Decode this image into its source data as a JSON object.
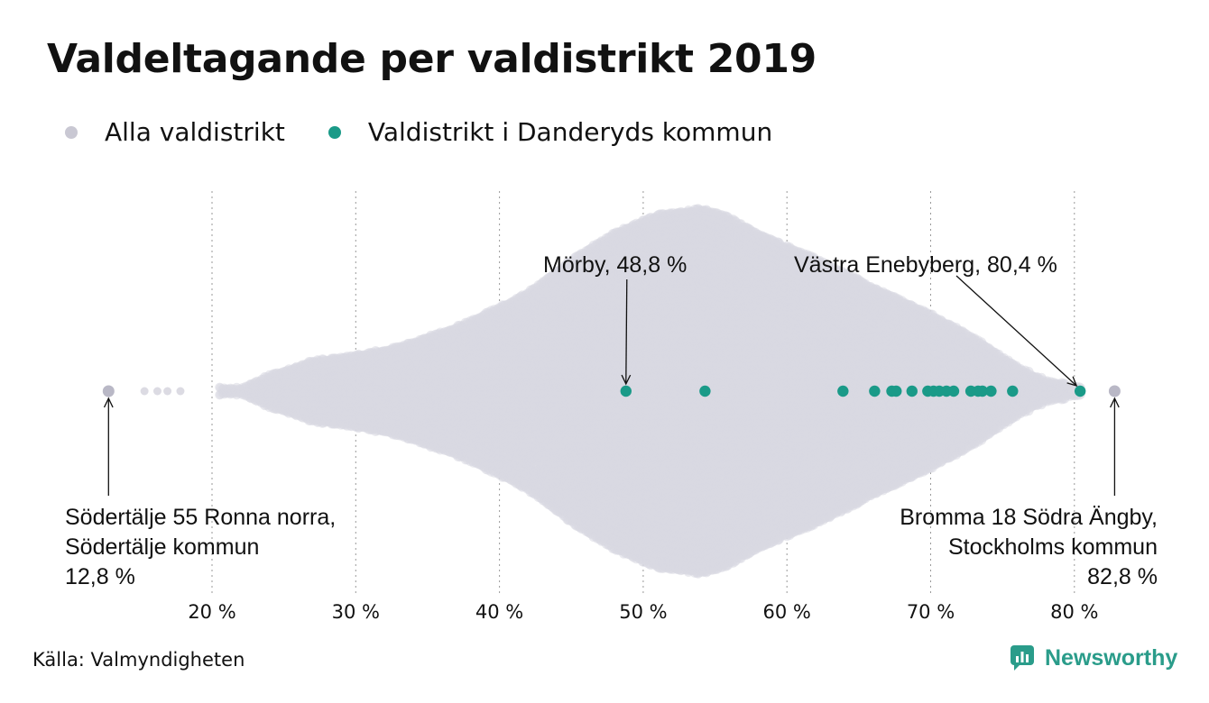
{
  "title": "Valdeltagande per valdistrikt 2019",
  "legend": [
    {
      "label": "Alla valdistrikt",
      "color": "#c9c8d3"
    },
    {
      "label": "Valdistrikt i Danderyds kommun",
      "color": "#1a9a88"
    }
  ],
  "source": "Källa: Valmyndigheten",
  "logo": {
    "label": "Newsworthy",
    "icon": "bar-chart-logo-icon",
    "color": "#2a9c8a"
  },
  "chart_data": {
    "type": "scatter",
    "subtype": "beeswarm",
    "xlim": [
      12,
      85
    ],
    "x_ticks": [
      20,
      30,
      40,
      50,
      60,
      70,
      80
    ],
    "x_tick_labels": [
      "20 %",
      "30 %",
      "40 %",
      "50 %",
      "60 %",
      "70 %",
      "80 %"
    ],
    "grid": "vertical-dotted",
    "legend_position": "top-left",
    "series": [
      {
        "name": "Alla valdistrikt",
        "color": "#c9c8d3",
        "values": [
          12.8,
          15.3,
          16.2,
          16.9,
          17.8,
          82.8
        ]
      },
      {
        "name": "Valdistrikt i Danderyds kommun",
        "color": "#1a9a88",
        "values": [
          48.8,
          54.3,
          63.9,
          66.1,
          67.3,
          67.6,
          68.7,
          69.8,
          70.2,
          70.6,
          71.1,
          71.6,
          72.8,
          73.3,
          73.6,
          74.2,
          75.7,
          80.4
        ]
      }
    ],
    "annotations": [
      {
        "lines": [
          "Mörby, 48,8 %"
        ],
        "x": 48.8
      },
      {
        "lines": [
          "Västra Enebyberg, 80,4 %"
        ],
        "x": 80.4
      },
      {
        "lines": [
          "Södertälje 55 Ronna norra,",
          "Södertälje kommun",
          "12,8 %"
        ],
        "x": 12.8
      },
      {
        "lines": [
          "Bromma 18 Södra Ängby,",
          "Stockholms kommun",
          "82,8 %"
        ],
        "x": 82.8
      }
    ]
  }
}
